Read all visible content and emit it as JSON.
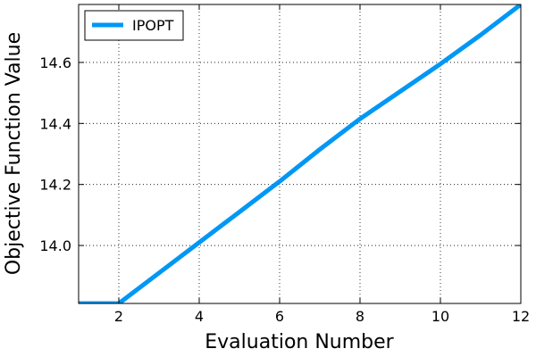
{
  "chart_data": {
    "type": "line",
    "title": "",
    "xlabel": "Evaluation Number",
    "ylabel": "Objective Function Value",
    "xlim": [
      1,
      12
    ],
    "ylim": [
      13.81,
      14.79
    ],
    "x_ticks": [
      2,
      4,
      6,
      8,
      10,
      12
    ],
    "x_tick_labels": [
      "2",
      "4",
      "6",
      "8",
      "10",
      "12"
    ],
    "y_ticks": [
      14.0,
      14.2,
      14.4,
      14.6
    ],
    "y_tick_labels": [
      "14.0",
      "14.2",
      "14.4",
      "14.6"
    ],
    "grid": true,
    "legend_position": "top-left",
    "series": [
      {
        "name": "IPOPT",
        "color": "#0097f5",
        "x": [
          1,
          2,
          3,
          4,
          5,
          6,
          7,
          8,
          9,
          10,
          11,
          12
        ],
        "y": [
          13.81,
          13.81,
          13.91,
          14.01,
          14.11,
          14.21,
          14.315,
          14.415,
          14.505,
          14.595,
          14.69,
          14.79
        ]
      }
    ]
  }
}
